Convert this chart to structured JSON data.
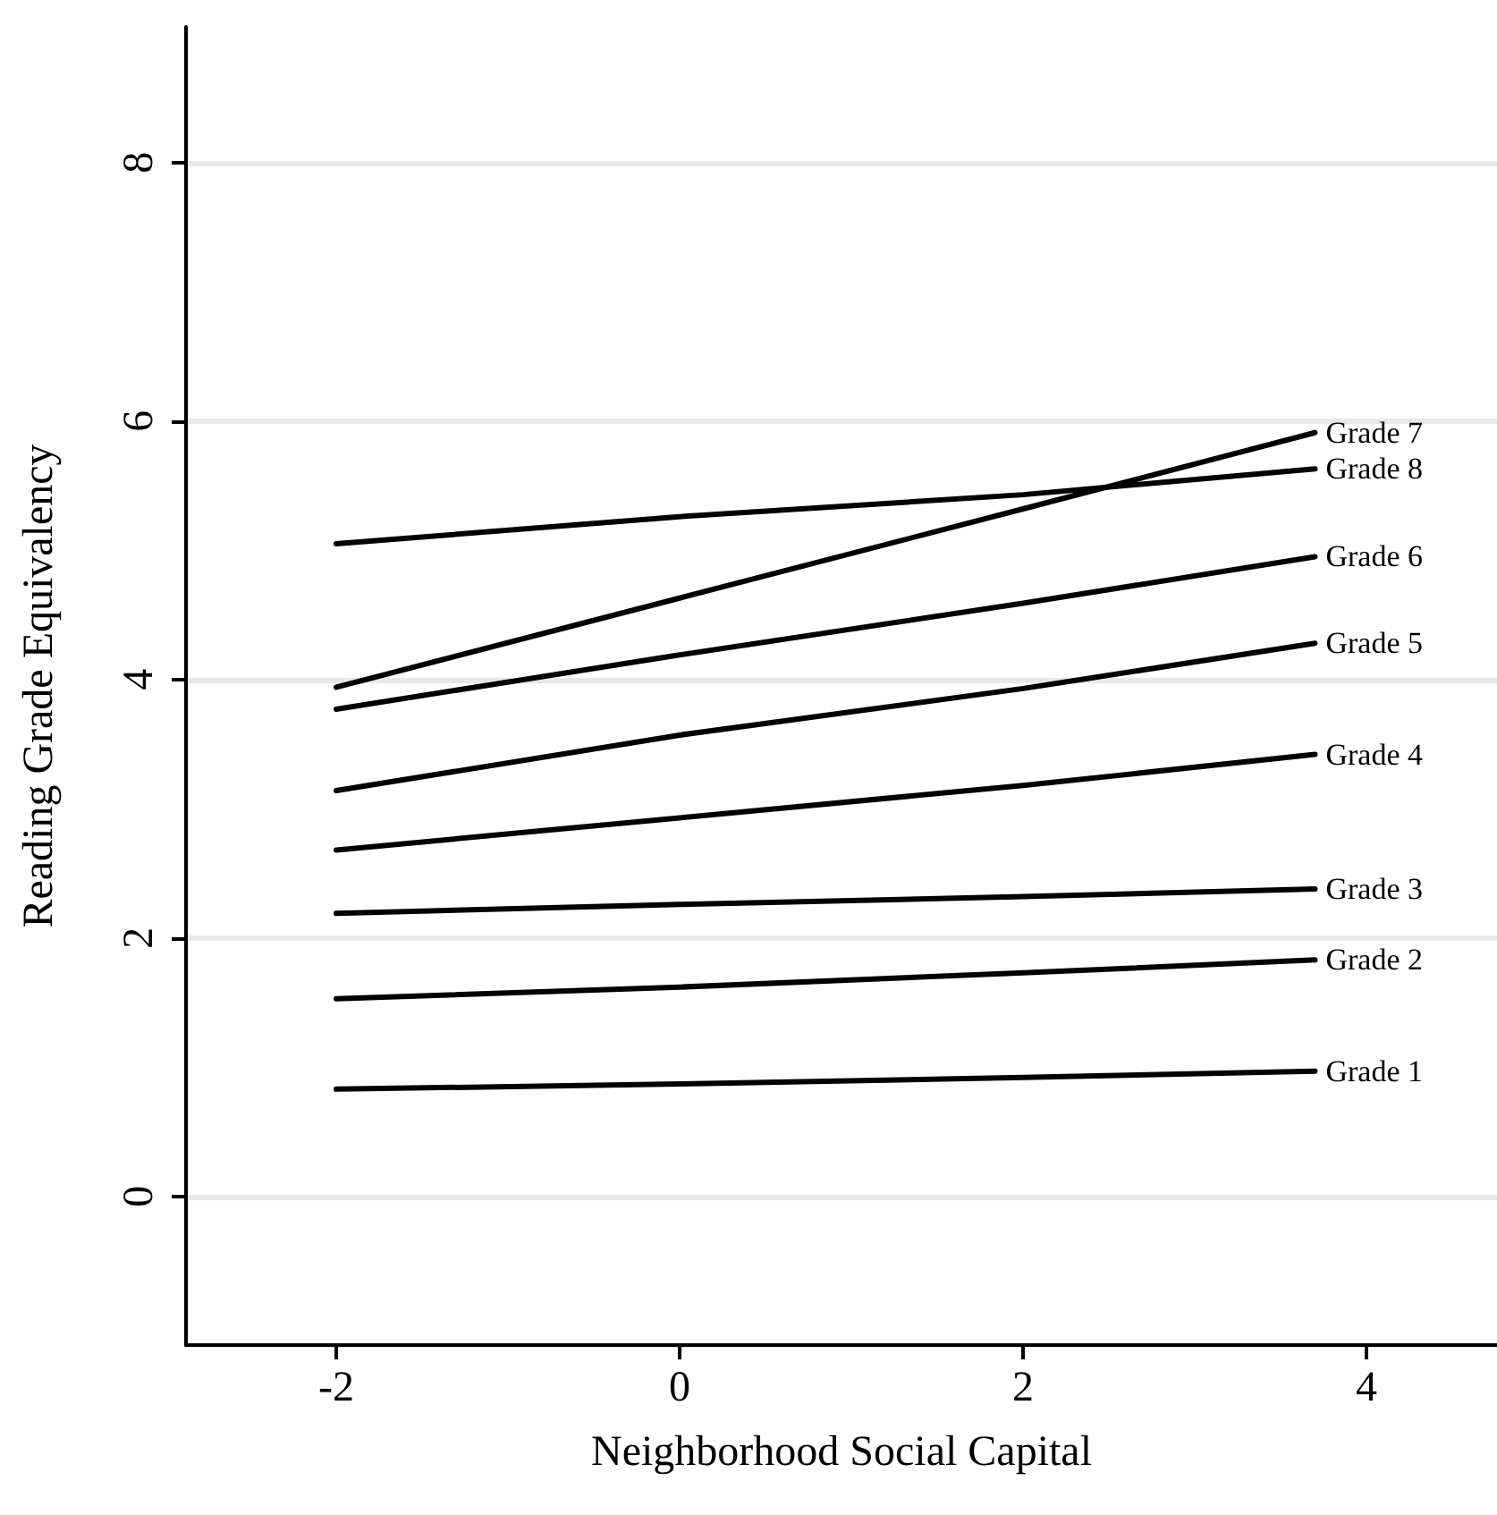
{
  "chart_data": {
    "type": "line",
    "xlabel": "Neighborhood Social Capital",
    "ylabel": "Reading Grade Equivalency",
    "x": [
      -2,
      0,
      2,
      3.7
    ],
    "series": [
      {
        "name": "Grade 1",
        "color": "#000000",
        "values": [
          0.83,
          0.87,
          0.92,
          0.97
        ]
      },
      {
        "name": "Grade 2",
        "color": "#000000",
        "values": [
          1.53,
          1.62,
          1.73,
          1.83
        ]
      },
      {
        "name": "Grade 3",
        "color": "#000000",
        "values": [
          2.19,
          2.26,
          2.32,
          2.38
        ]
      },
      {
        "name": "Grade 4",
        "color": "#000000",
        "values": [
          2.68,
          2.93,
          3.18,
          3.42
        ]
      },
      {
        "name": "Grade 5",
        "color": "#000000",
        "values": [
          3.14,
          3.57,
          3.93,
          4.28
        ]
      },
      {
        "name": "Grade 6",
        "color": "#000000",
        "values": [
          3.77,
          4.19,
          4.59,
          4.95
        ]
      },
      {
        "name": "Grade 7",
        "color": "#000000",
        "values": [
          3.94,
          4.63,
          5.32,
          5.91
        ]
      },
      {
        "name": "Grade 8",
        "color": "#000000",
        "values": [
          5.05,
          5.26,
          5.43,
          5.63
        ]
      }
    ],
    "xlim": [
      -2.875,
      4.76
    ],
    "xticks": [
      -2,
      0,
      2,
      4
    ],
    "ylim": [
      -1.15,
      9.05
    ],
    "yticks": [
      0,
      2,
      4,
      6,
      8
    ],
    "grid": "y",
    "legend": false,
    "marker": "none",
    "line_style": "solid"
  }
}
